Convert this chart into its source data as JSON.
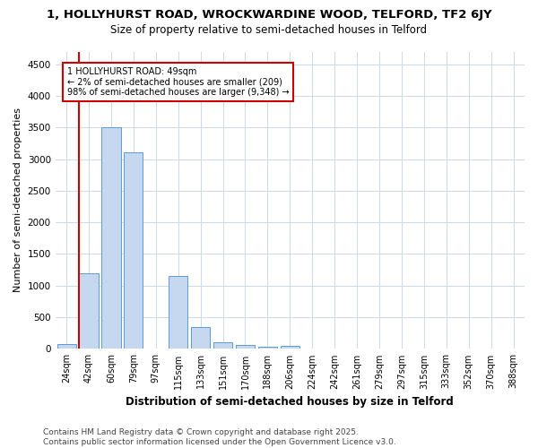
{
  "title_line1": "1, HOLLYHURST ROAD, WROCKWARDINE WOOD, TELFORD, TF2 6JY",
  "title_line2": "Size of property relative to semi-detached houses in Telford",
  "xlabel": "Distribution of semi-detached houses by size in Telford",
  "ylabel": "Number of semi-detached properties",
  "categories": [
    "24sqm",
    "42sqm",
    "60sqm",
    "79sqm",
    "97sqm",
    "115sqm",
    "133sqm",
    "151sqm",
    "170sqm",
    "188sqm",
    "206sqm",
    "224sqm",
    "242sqm",
    "261sqm",
    "279sqm",
    "297sqm",
    "315sqm",
    "333sqm",
    "352sqm",
    "370sqm",
    "388sqm"
  ],
  "values": [
    80,
    1200,
    3500,
    3100,
    0,
    1150,
    350,
    110,
    60,
    40,
    50,
    0,
    0,
    0,
    0,
    0,
    0,
    0,
    0,
    0,
    0
  ],
  "bar_color": "#c5d8f0",
  "bar_edge_color": "#5b9bd5",
  "annotation_title": "1 HOLLYHURST ROAD: 49sqm",
  "annotation_line1": "← 2% of semi-detached houses are smaller (209)",
  "annotation_line2": "98% of semi-detached houses are larger (9,348) →",
  "annotation_box_color": "#ffffff",
  "annotation_box_edge": "#cc0000",
  "red_line_color": "#cc0000",
  "ylim": [
    0,
    4700
  ],
  "yticks": [
    0,
    500,
    1000,
    1500,
    2000,
    2500,
    3000,
    3500,
    4000,
    4500
  ],
  "background_color": "#ffffff",
  "grid_color": "#ccd9e8",
  "footer_line1": "Contains HM Land Registry data © Crown copyright and database right 2025.",
  "footer_line2": "Contains public sector information licensed under the Open Government Licence v3.0.",
  "title_fontsize": 9.5,
  "subtitle_fontsize": 8.5,
  "axis_label_fontsize": 8,
  "tick_fontsize": 7,
  "annotation_fontsize": 7,
  "footer_fontsize": 6.5
}
